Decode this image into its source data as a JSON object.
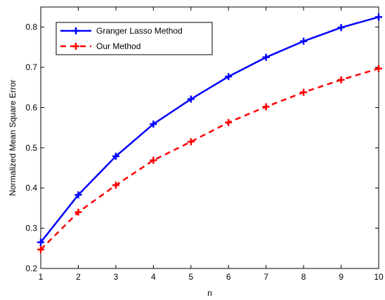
{
  "chart_data": {
    "type": "line",
    "title": "",
    "xlabel": "n",
    "ylabel": "Normalized Mean Square Error",
    "xlim": [
      1,
      10
    ],
    "ylim": [
      0.2,
      0.85
    ],
    "x": [
      1,
      2,
      3,
      4,
      5,
      6,
      7,
      8,
      9,
      10
    ],
    "xticks": [
      "1",
      "2",
      "3",
      "4",
      "5",
      "6",
      "7",
      "8",
      "9",
      "10"
    ],
    "yticks": [
      "0.2",
      "0.3",
      "0.4",
      "0.5",
      "0.6",
      "0.7",
      "0.8"
    ],
    "ytick_values": [
      0.2,
      0.3,
      0.4,
      0.5,
      0.6,
      0.7,
      0.8
    ],
    "grid": false,
    "legend_position": "top-left",
    "series": [
      {
        "name": "Granger Lasso Method",
        "color": "#0000ff",
        "line_style": "solid",
        "marker": "plus",
        "values": [
          0.265,
          0.383,
          0.479,
          0.559,
          0.621,
          0.677,
          0.725,
          0.765,
          0.799,
          0.825
        ]
      },
      {
        "name": "Our Method",
        "color": "#ff0000",
        "line_style": "dashed",
        "marker": "plus",
        "values": [
          0.247,
          0.34,
          0.407,
          0.469,
          0.515,
          0.563,
          0.602,
          0.638,
          0.669,
          0.697
        ]
      }
    ]
  }
}
